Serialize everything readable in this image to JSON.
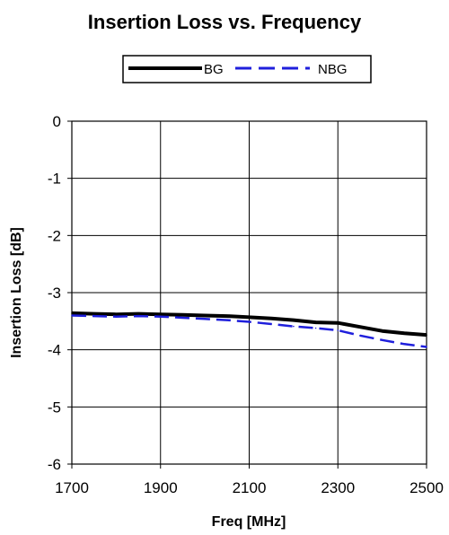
{
  "chart_data": {
    "type": "line",
    "title": "Insertion Loss vs. Frequency",
    "xlabel": "Freq [MHz]",
    "ylabel": "Insertion Loss [dB]",
    "xlim": [
      1700,
      2500
    ],
    "ylim": [
      -6,
      0
    ],
    "x_ticks": [
      1700,
      1900,
      2100,
      2300,
      2500
    ],
    "y_ticks": [
      0,
      -1,
      -2,
      -3,
      -4,
      -5,
      -6
    ],
    "grid": true,
    "legend_position": "top",
    "series": [
      {
        "name": "BG",
        "color": "#000000",
        "style": "solid",
        "points": [
          [
            1700,
            -3.36
          ],
          [
            1750,
            -3.37
          ],
          [
            1800,
            -3.38
          ],
          [
            1850,
            -3.37
          ],
          [
            1900,
            -3.38
          ],
          [
            1950,
            -3.39
          ],
          [
            2000,
            -3.4
          ],
          [
            2050,
            -3.41
          ],
          [
            2100,
            -3.43
          ],
          [
            2150,
            -3.45
          ],
          [
            2200,
            -3.48
          ],
          [
            2250,
            -3.52
          ],
          [
            2300,
            -3.53
          ],
          [
            2350,
            -3.6
          ],
          [
            2400,
            -3.67
          ],
          [
            2450,
            -3.71
          ],
          [
            2500,
            -3.74
          ]
        ]
      },
      {
        "name": "NBG",
        "color": "#1f1fdc",
        "style": "dashed",
        "points": [
          [
            1700,
            -3.4
          ],
          [
            1750,
            -3.41
          ],
          [
            1800,
            -3.42
          ],
          [
            1850,
            -3.41
          ],
          [
            1900,
            -3.42
          ],
          [
            1950,
            -3.44
          ],
          [
            2000,
            -3.46
          ],
          [
            2050,
            -3.48
          ],
          [
            2100,
            -3.51
          ],
          [
            2150,
            -3.55
          ],
          [
            2200,
            -3.59
          ],
          [
            2250,
            -3.62
          ],
          [
            2300,
            -3.66
          ],
          [
            2350,
            -3.75
          ],
          [
            2400,
            -3.83
          ],
          [
            2450,
            -3.9
          ],
          [
            2500,
            -3.95
          ]
        ]
      }
    ]
  }
}
